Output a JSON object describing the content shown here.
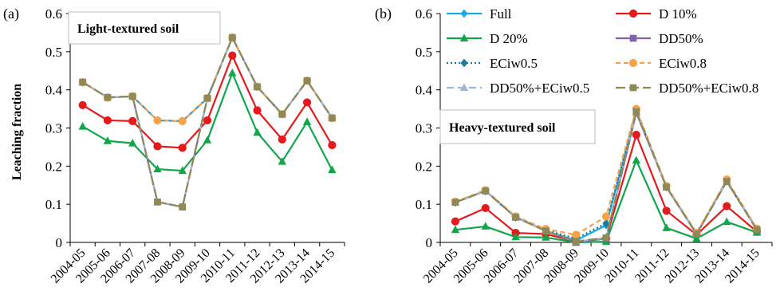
{
  "panels": [
    {
      "label": "(a)",
      "box_title": "Light-textured soil",
      "ylabel": "Leaching fraction"
    },
    {
      "label": "(b)",
      "box_title": "Heavy-textured soil",
      "ylabel": ""
    }
  ],
  "legend": {
    "placement": "top-right of panel (b)",
    "entries": [
      "Full",
      "D 10%",
      "D 20%",
      "DD50%",
      "ECiw0.5",
      "ECiw0.8",
      "DD50%+ECiw0.5",
      "DD50%+ECiw0.8"
    ]
  },
  "styles": [
    {
      "color": "#1ca9e6",
      "dash": "",
      "marker": "diamond"
    },
    {
      "color": "#e41a1c",
      "dash": "",
      "marker": "circle"
    },
    {
      "color": "#12a64b",
      "dash": "",
      "marker": "triangle"
    },
    {
      "color": "#7e62aa",
      "dash": "",
      "marker": "square"
    },
    {
      "color": "#1f7a9a",
      "dash": "2,3",
      "marker": "diamond"
    },
    {
      "color": "#f5a24a",
      "dash": "6,4",
      "marker": "circle"
    },
    {
      "color": "#9fb6d6",
      "dash": "9,5",
      "marker": "triangle"
    },
    {
      "color": "#8f8a55",
      "dash": "12,5",
      "marker": "square"
    }
  ],
  "chart_data": [
    {
      "type": "line",
      "title": "Light-textured soil",
      "xlabel": "",
      "ylabel": "Leaching fraction",
      "ylim": [
        0,
        0.6
      ],
      "yticks": [
        "0",
        "0.1",
        "0.2",
        "0.3",
        "0.4",
        "0.5",
        "0.6"
      ],
      "grid": false,
      "categories": [
        "2004-05",
        "2005-06",
        "2006-07",
        "2007-08",
        "2008-09",
        "2009-10",
        "2010-11",
        "2011-12",
        "2012-13",
        "2013-14",
        "2014-15"
      ],
      "series": [
        {
          "name": "Full",
          "values": [
            0.42,
            0.38,
            0.383,
            0.32,
            0.318,
            0.378,
            0.537,
            0.408,
            0.336,
            0.424,
            0.326
          ]
        },
        {
          "name": "D 10%",
          "values": [
            0.36,
            0.32,
            0.318,
            0.252,
            0.248,
            0.32,
            0.49,
            0.346,
            0.27,
            0.367,
            0.255
          ]
        },
        {
          "name": "D 20%",
          "values": [
            0.304,
            0.266,
            0.26,
            0.192,
            0.188,
            0.268,
            0.444,
            0.288,
            0.212,
            0.316,
            0.19
          ]
        },
        {
          "name": "DD50%",
          "values": [
            0.42,
            0.38,
            0.383,
            0.106,
            0.093,
            0.378,
            0.537,
            0.408,
            0.336,
            0.424,
            0.326
          ]
        },
        {
          "name": "ECiw0.5",
          "values": [
            0.42,
            0.38,
            0.383,
            0.32,
            0.318,
            0.378,
            0.537,
            0.408,
            0.336,
            0.424,
            0.326
          ]
        },
        {
          "name": "ECiw0.8",
          "values": [
            0.42,
            0.38,
            0.383,
            0.32,
            0.318,
            0.378,
            0.537,
            0.408,
            0.336,
            0.424,
            0.326
          ]
        },
        {
          "name": "DD50%+ECiw0.5",
          "values": [
            0.42,
            0.38,
            0.383,
            0.106,
            0.093,
            0.378,
            0.537,
            0.408,
            0.336,
            0.424,
            0.326
          ]
        },
        {
          "name": "DD50%+ECiw0.8",
          "values": [
            0.42,
            0.38,
            0.383,
            0.106,
            0.093,
            0.378,
            0.537,
            0.408,
            0.336,
            0.424,
            0.326
          ]
        }
      ]
    },
    {
      "type": "line",
      "title": "Heavy-textured soil",
      "xlabel": "",
      "ylabel": "",
      "ylim": [
        0,
        0.6
      ],
      "yticks": [
        "0",
        "0.1",
        "0.2",
        "0.3",
        "0.4",
        "0.5",
        "0.6"
      ],
      "grid": false,
      "categories": [
        "2004-05",
        "2005-06",
        "2006-07",
        "2007-08",
        "2008-09",
        "2009-10",
        "2010-11",
        "2011-12",
        "2012-13",
        "2013-14",
        "2014-15"
      ],
      "series": [
        {
          "name": "Full",
          "values": [
            0.105,
            0.135,
            0.066,
            0.03,
            0.005,
            0.045,
            0.34,
            0.145,
            0.022,
            0.16,
            0.033
          ]
        },
        {
          "name": "D 10%",
          "values": [
            0.055,
            0.09,
            0.025,
            0.022,
            0.002,
            0.01,
            0.282,
            0.083,
            0.02,
            0.095,
            0.028
          ]
        },
        {
          "name": "D 20%",
          "values": [
            0.033,
            0.042,
            0.014,
            0.013,
            0.0,
            0.002,
            0.215,
            0.038,
            0.01,
            0.054,
            0.026
          ]
        },
        {
          "name": "DD50%",
          "values": [
            0.105,
            0.135,
            0.066,
            0.03,
            0.0,
            0.01,
            0.34,
            0.145,
            0.022,
            0.16,
            0.033
          ]
        },
        {
          "name": "ECiw0.5",
          "values": [
            0.105,
            0.135,
            0.066,
            0.032,
            0.01,
            0.05,
            0.345,
            0.146,
            0.023,
            0.162,
            0.034
          ]
        },
        {
          "name": "ECiw0.8",
          "values": [
            0.107,
            0.137,
            0.068,
            0.035,
            0.02,
            0.068,
            0.35,
            0.148,
            0.025,
            0.165,
            0.036
          ]
        },
        {
          "name": "DD50%+ECiw0.5",
          "values": [
            0.105,
            0.135,
            0.066,
            0.03,
            0.002,
            0.012,
            0.342,
            0.145,
            0.022,
            0.16,
            0.033
          ]
        },
        {
          "name": "DD50%+ECiw0.8",
          "values": [
            0.105,
            0.135,
            0.066,
            0.03,
            0.003,
            0.012,
            0.343,
            0.145,
            0.022,
            0.16,
            0.033
          ]
        }
      ]
    }
  ]
}
